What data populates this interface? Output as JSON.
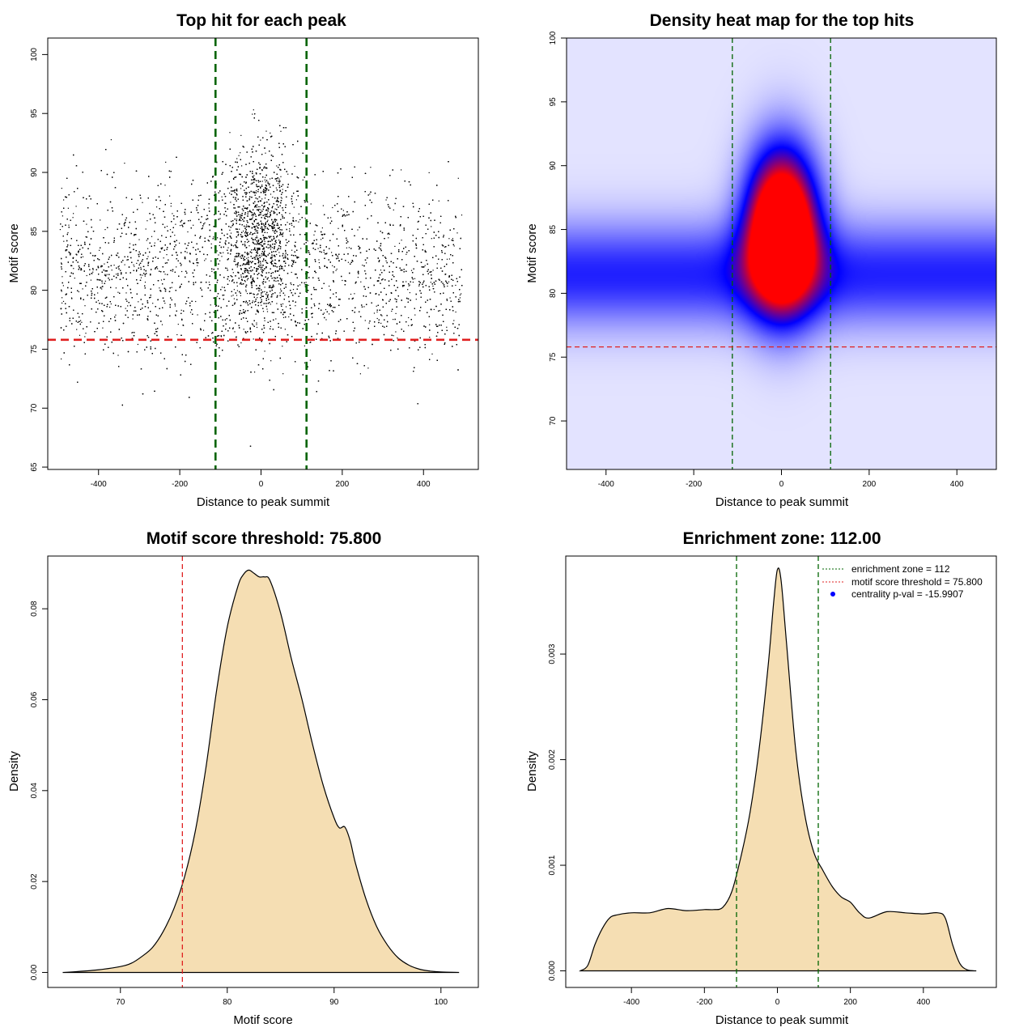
{
  "colors": {
    "scatter_point": "#000000",
    "zone_line": "#006400",
    "threshold_line": "#e02020",
    "density_fill": "#f5deb3",
    "heat_low": "#ffffff",
    "heat_mid": "#0000ff",
    "heat_high": "#ff0000"
  },
  "chart_data": [
    {
      "id": "scatter",
      "type": "scatter",
      "title": "Top hit for each peak",
      "xlabel": "Distance to peak summit",
      "ylabel": "Motif score",
      "xlim": [
        -525,
        535
      ],
      "ylim": [
        64.8,
        101.4
      ],
      "xticks": [
        -400,
        -200,
        0,
        200,
        400
      ],
      "xtick_labels": [
        "-400",
        "-200",
        "0",
        "200",
        "400"
      ],
      "yticks": [
        65,
        70,
        75,
        80,
        85,
        90,
        95,
        100
      ],
      "ytick_labels": [
        "65",
        "70",
        "75",
        "80",
        "85",
        "90",
        "95",
        "100"
      ],
      "point_distribution": {
        "n_points": 12000,
        "x_range": [
          -495,
          495
        ],
        "background_y_mean": 81.5,
        "background_y_sd": 3.6,
        "central_fraction": 0.35,
        "central_x_sd": 45,
        "central_y_mean": 85,
        "central_y_sd": 3.8,
        "y_min": 66,
        "y_max": 100
      },
      "vlines": [
        -112,
        112
      ],
      "hline": 75.8,
      "grid": false,
      "legend": "none"
    },
    {
      "id": "heatmap",
      "type": "heatmap",
      "title": "Density heat map for the top hits",
      "xlabel": "Distance to peak summit",
      "ylabel": "Motif score",
      "xlim": [
        -490,
        490
      ],
      "ylim": [
        66.2,
        100
      ],
      "xticks": [
        -400,
        -200,
        0,
        200,
        400
      ],
      "xtick_labels": [
        "-400",
        "-200",
        "0",
        "200",
        "400"
      ],
      "yticks": [
        70,
        75,
        80,
        85,
        90,
        95,
        100
      ],
      "ytick_labels": [
        "70",
        "75",
        "80",
        "85",
        "90",
        "95",
        "100"
      ],
      "density_model": {
        "background_y_mean": 81.5,
        "background_y_sd": 2.8,
        "center_x": 0,
        "center_x_sd": 55,
        "center_y_mean": 85,
        "center_y_sd": 4.2,
        "center_weight": 1.0
      },
      "vlines": [
        -112,
        112
      ],
      "hline": 75.8,
      "grid": false,
      "legend": "none"
    },
    {
      "id": "score-density",
      "type": "area",
      "title": "Motif score threshold: 75.800",
      "xlabel": "Motif score",
      "ylabel": "Density",
      "xlim": [
        63.2,
        103.5
      ],
      "ylim": [
        -0.0033,
        0.0916
      ],
      "xticks": [
        70,
        80,
        90,
        100
      ],
      "xtick_labels": [
        "70",
        "80",
        "90",
        "100"
      ],
      "yticks": [
        0,
        0.02,
        0.04,
        0.06,
        0.08
      ],
      "ytick_labels": [
        "0.00",
        "0.02",
        "0.04",
        "0.06",
        "0.08"
      ],
      "x": [
        64.6,
        66,
        68,
        70,
        71,
        72,
        73,
        74,
        75,
        76,
        77,
        78,
        79,
        80,
        81,
        81.5,
        82,
        82.5,
        83,
        83.5,
        84,
        85,
        86,
        87,
        88,
        89,
        90,
        90.5,
        91,
        91.5,
        92,
        93,
        94,
        95,
        96,
        97,
        98,
        99,
        100,
        101.7
      ],
      "y": [
        0,
        0.0002,
        0.0006,
        0.0013,
        0.002,
        0.0035,
        0.0055,
        0.009,
        0.014,
        0.021,
        0.031,
        0.045,
        0.062,
        0.076,
        0.085,
        0.0875,
        0.0885,
        0.0878,
        0.087,
        0.087,
        0.0862,
        0.079,
        0.069,
        0.06,
        0.05,
        0.041,
        0.034,
        0.0318,
        0.032,
        0.029,
        0.024,
        0.016,
        0.01,
        0.006,
        0.0032,
        0.0016,
        0.0007,
        0.0003,
        0.0001,
        0
      ],
      "vlines": [
        75.8
      ],
      "grid": false,
      "legend": "none"
    },
    {
      "id": "position-density",
      "type": "area",
      "title": "Enrichment zone: 112.00",
      "xlabel": "Distance to peak summit",
      "ylabel": "Density",
      "xlim": [
        -580,
        600
      ],
      "ylim": [
        -0.000157,
        0.003928
      ],
      "xticks": [
        -400,
        -200,
        0,
        200,
        400
      ],
      "xtick_labels": [
        "-400",
        "-200",
        "0",
        "200",
        "400"
      ],
      "yticks": [
        0,
        0.001,
        0.002,
        0.003
      ],
      "ytick_labels": [
        "0.000",
        "0.001",
        "0.002",
        "0.003"
      ],
      "x": [
        -540,
        -520,
        -500,
        -480,
        -460,
        -440,
        -400,
        -350,
        -300,
        -250,
        -200,
        -175,
        -150,
        -125,
        -100,
        -75,
        -50,
        -25,
        -10,
        0,
        10,
        25,
        50,
        75,
        100,
        125,
        150,
        175,
        200,
        225,
        250,
        300,
        350,
        400,
        440,
        460,
        480,
        500,
        520,
        545
      ],
      "y": [
        0,
        5e-05,
        0.00025,
        0.0004,
        0.0005,
        0.00053,
        0.00055,
        0.00055,
        0.00059,
        0.00057,
        0.00058,
        0.00058,
        0.0006,
        0.00075,
        0.00108,
        0.0015,
        0.0021,
        0.0029,
        0.0035,
        0.0038,
        0.0037,
        0.0031,
        0.0021,
        0.00148,
        0.00112,
        0.00095,
        0.0008,
        0.0007,
        0.00065,
        0.00055,
        0.0005,
        0.00056,
        0.00055,
        0.00054,
        0.00055,
        0.0005,
        0.00025,
        7e-05,
        1e-05,
        0
      ],
      "vlines": [
        -112,
        112
      ],
      "grid": false,
      "legend": {
        "position": "top-right",
        "entries": [
          {
            "label": "enrichment zone = 112",
            "style": "dotted-line",
            "color": "#006400"
          },
          {
            "label": "motif score threshold = 75.800",
            "style": "dotted-line",
            "color": "#e02020"
          },
          {
            "label": "centrality p-val = -15.9907",
            "style": "dot",
            "color": "#0000ff"
          }
        ]
      }
    }
  ]
}
